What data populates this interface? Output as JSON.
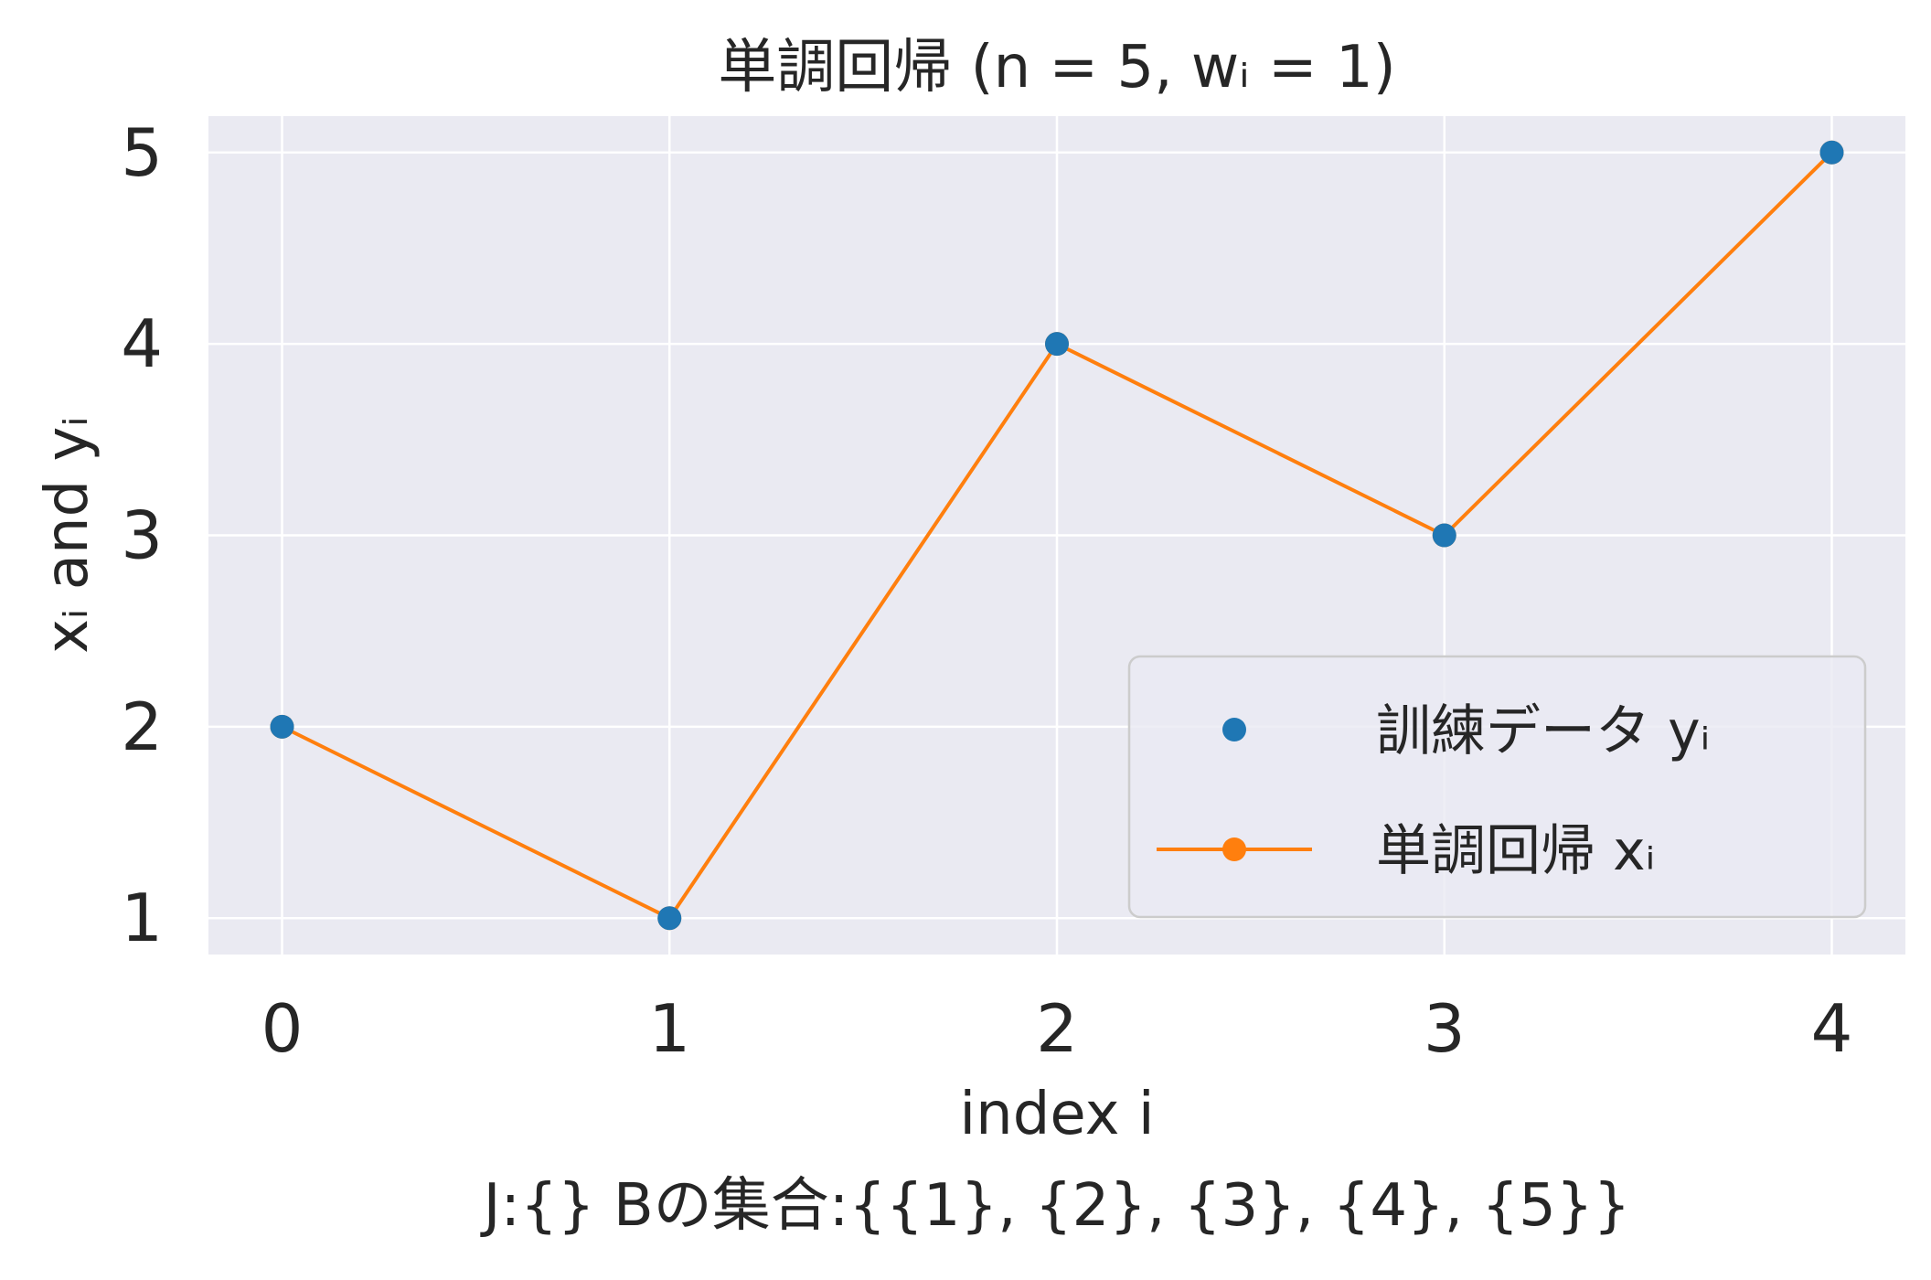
{
  "chart_data": {
    "type": "line",
    "title": "単調回帰 (n = 5, wᵢ = 1)",
    "xlabel": "index i",
    "ylabel": "xᵢ and yᵢ",
    "footer": "J:{}     Bの集合:{{1}, {2}, {3}, {4}, {5}}",
    "x": [
      0,
      1,
      2,
      3,
      4
    ],
    "xlim": [
      -0.19,
      4.19
    ],
    "ylim": [
      0.81,
      5.19
    ],
    "x_ticks": [
      "0",
      "1",
      "2",
      "3",
      "4"
    ],
    "y_ticks": [
      "1",
      "2",
      "3",
      "4",
      "5"
    ],
    "grid": true,
    "legend_position": "lower-right",
    "series": [
      {
        "name": "訓練データ yᵢ",
        "kind": "scatter",
        "color": "#1f77b4",
        "values": [
          2,
          1,
          4,
          3,
          5
        ]
      },
      {
        "name": "単調回帰 xᵢ",
        "kind": "line",
        "color": "#ff7f0e",
        "values": [
          2,
          1,
          4,
          3,
          5
        ]
      }
    ]
  }
}
